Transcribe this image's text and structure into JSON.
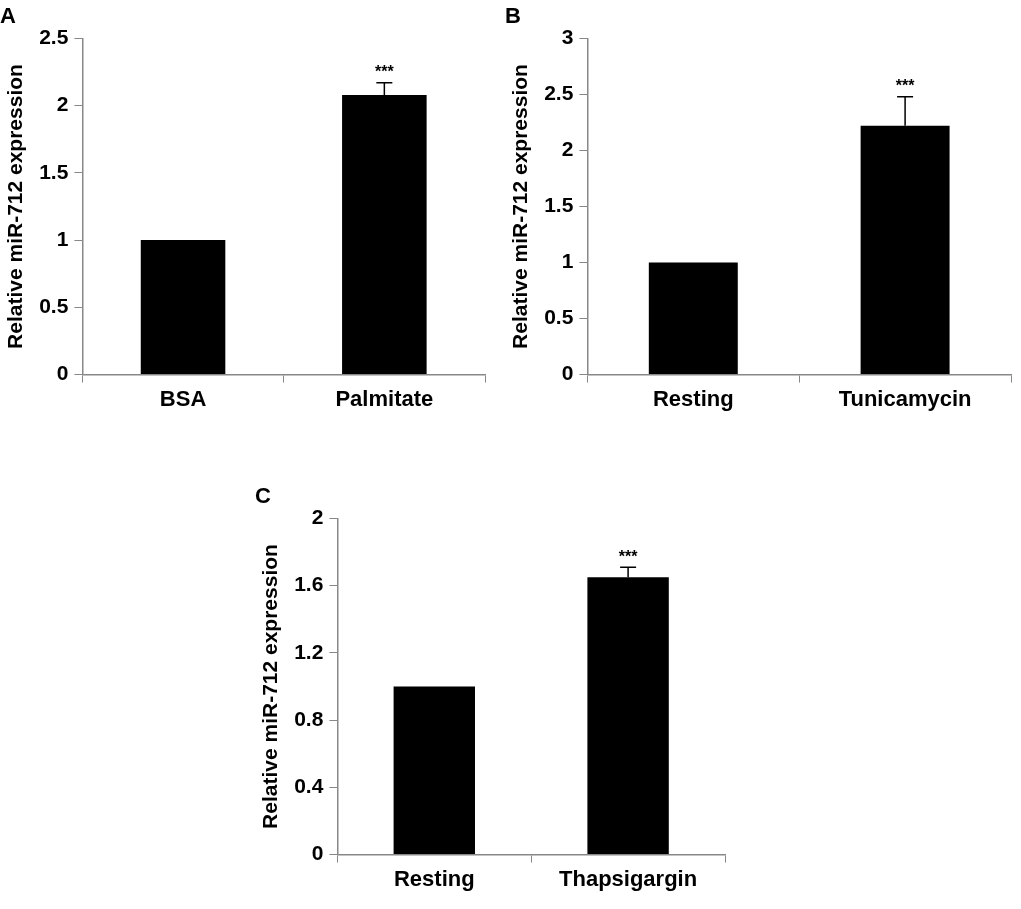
{
  "chart_data": [
    {
      "type": "bar",
      "title": "A",
      "ylabel": "Relative miR-712 expression",
      "categories": [
        "BSA",
        "Palmitate"
      ],
      "values": [
        1,
        2.08
      ],
      "errors": [
        null,
        0.09
      ],
      "color": "#000000",
      "ylim": [
        0,
        2.5
      ],
      "yticks": [
        0,
        0.5,
        1,
        1.5,
        2,
        2.5
      ],
      "grid": false,
      "annotations": [
        {
          "text": "***",
          "x": "Palmitate",
          "y": 2.17
        }
      ]
    },
    {
      "type": "bar",
      "title": "B",
      "ylabel": "Relative miR-712 expression",
      "categories": [
        "Resting",
        "Tunicamycin"
      ],
      "values": [
        1,
        2.22
      ],
      "errors": [
        null,
        0.26
      ],
      "color": "#000000",
      "ylim": [
        0,
        3
      ],
      "yticks": [
        0,
        0.5,
        1,
        1.5,
        2,
        2.5,
        3
      ],
      "grid": false,
      "annotations": [
        {
          "text": "***",
          "x": "Tunicamycin",
          "y": 2.48
        }
      ]
    },
    {
      "type": "bar",
      "title": "C",
      "ylabel": "Relative miR-712 expression",
      "categories": [
        "Resting",
        "Thapsigargin"
      ],
      "values": [
        1,
        1.65
      ],
      "errors": [
        null,
        0.06
      ],
      "color": "#000000",
      "ylim": [
        0,
        2
      ],
      "yticks": [
        0,
        0.4,
        0.8,
        1.2,
        1.6,
        2
      ],
      "grid": false,
      "annotations": [
        {
          "text": "***",
          "x": "Thapsigargin",
          "y": 1.71
        }
      ]
    }
  ]
}
